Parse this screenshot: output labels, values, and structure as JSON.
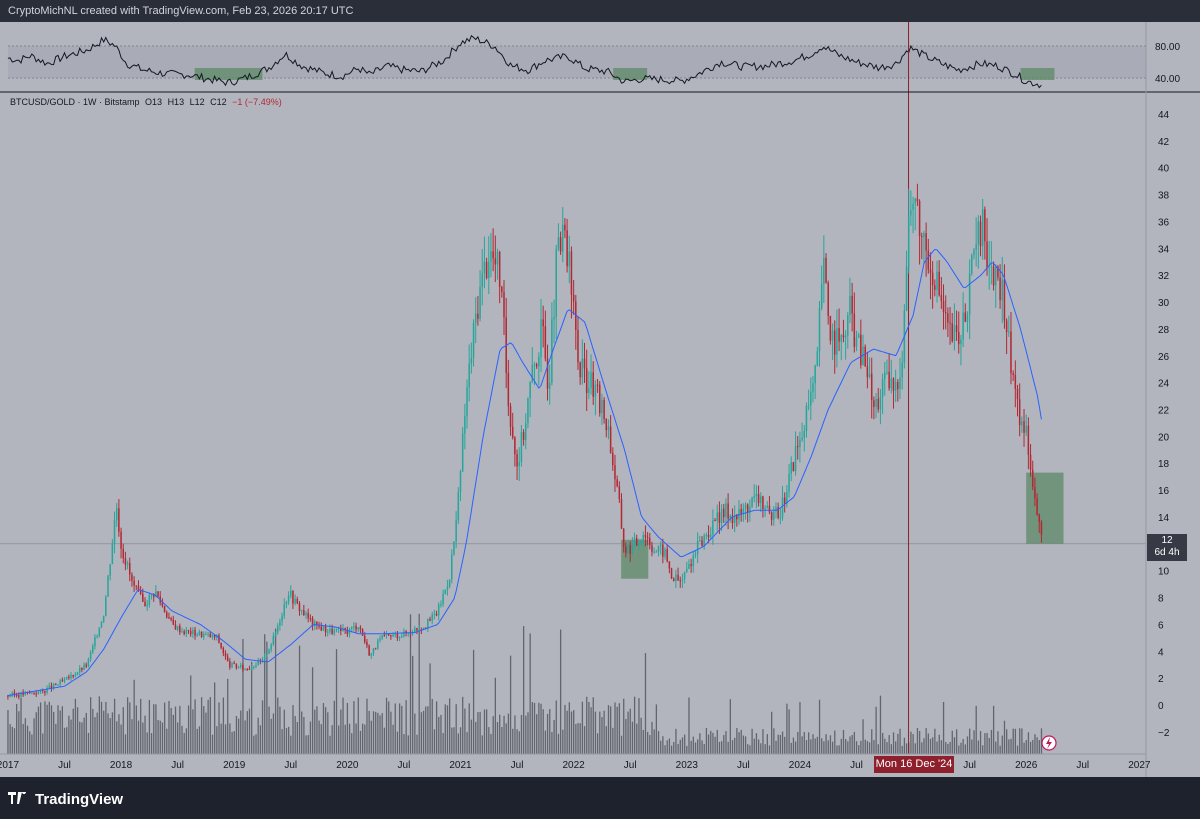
{
  "header": {
    "text": "CryptoMichNL created with TradingView.com, Feb 23, 2026 20:17 UTC"
  },
  "legend": {
    "symbol": "BTCUSD/GOLD · 1W · Bitstamp",
    "open": "O13",
    "high": "H13",
    "low": "L12",
    "close": "C12",
    "change": "−1 (−7.49%)"
  },
  "price_tag": {
    "price": "12",
    "countdown": "6d 4h"
  },
  "crosshair_date": "Mon 16 Dec '24",
  "footer": {
    "brand": "TradingView"
  },
  "colors": {
    "up": "#26a69a",
    "down": "#b22833",
    "ma": "#2962ff",
    "rsi": "#131722",
    "highlight": "#5d8a66",
    "crosshair": "#8e1f2c"
  },
  "chart_data": {
    "type": "candlestick",
    "symbol": "BTCUSD/GOLD",
    "interval": "1W",
    "exchange": "Bitstamp",
    "y_ticks": [
      -2,
      0,
      2,
      4,
      6,
      8,
      10,
      12,
      14,
      16,
      18,
      20,
      22,
      24,
      26,
      28,
      30,
      32,
      34,
      36,
      38,
      40,
      42,
      44
    ],
    "x_ticks": [
      "2017",
      "Jul",
      "2018",
      "Jul",
      "2019",
      "Jul",
      "2020",
      "Jul",
      "2021",
      "Jul",
      "2022",
      "Jul",
      "2023",
      "Jul",
      "2024",
      "Jul",
      "2025",
      "Jul",
      "2026",
      "Jul",
      "2027"
    ],
    "x_tick_years": [
      2017.0,
      2017.5,
      2018.0,
      2018.5,
      2019.0,
      2019.5,
      2020.0,
      2020.5,
      2021.0,
      2021.5,
      2022.0,
      2022.5,
      2023.0,
      2023.5,
      2024.0,
      2024.5,
      2025.0,
      2025.5,
      2026.0,
      2026.5,
      2027.0
    ],
    "x_range": [
      2016.93,
      2027.05
    ],
    "y_range": [
      -3.8,
      45.6
    ],
    "current_price": 12,
    "price_anchors": [
      [
        2017.0,
        0.7
      ],
      [
        2017.3,
        1.0
      ],
      [
        2017.5,
        1.8
      ],
      [
        2017.7,
        3.0
      ],
      [
        2017.85,
        7.0
      ],
      [
        2017.96,
        15.0
      ],
      [
        2018.0,
        12.0
      ],
      [
        2018.1,
        9.0
      ],
      [
        2018.2,
        7.5
      ],
      [
        2018.3,
        8.5
      ],
      [
        2018.45,
        6.0
      ],
      [
        2018.55,
        5.5
      ],
      [
        2018.7,
        5.3
      ],
      [
        2018.85,
        5.0
      ],
      [
        2018.95,
        3.0
      ],
      [
        2019.1,
        2.7
      ],
      [
        2019.25,
        3.3
      ],
      [
        2019.35,
        5.0
      ],
      [
        2019.48,
        8.5
      ],
      [
        2019.55,
        7.5
      ],
      [
        2019.7,
        6.0
      ],
      [
        2019.85,
        5.5
      ],
      [
        2020.0,
        5.5
      ],
      [
        2020.1,
        6.0
      ],
      [
        2020.2,
        3.7
      ],
      [
        2020.3,
        5.0
      ],
      [
        2020.5,
        5.3
      ],
      [
        2020.7,
        6.0
      ],
      [
        2020.8,
        7.0
      ],
      [
        2020.9,
        9.5
      ],
      [
        2020.97,
        14.0
      ],
      [
        2021.05,
        23.0
      ],
      [
        2021.15,
        30.0
      ],
      [
        2021.25,
        34.0
      ],
      [
        2021.35,
        32.0
      ],
      [
        2021.42,
        23.0
      ],
      [
        2021.5,
        18.0
      ],
      [
        2021.55,
        20.0
      ],
      [
        2021.62,
        24.0
      ],
      [
        2021.72,
        28.0
      ],
      [
        2021.78,
        24.0
      ],
      [
        2021.85,
        33.0
      ],
      [
        2021.92,
        35.0
      ],
      [
        2021.98,
        31.0
      ],
      [
        2022.05,
        25.0
      ],
      [
        2022.15,
        24.0
      ],
      [
        2022.2,
        23.0
      ],
      [
        2022.3,
        21.0
      ],
      [
        2022.4,
        15.0
      ],
      [
        2022.45,
        11.5
      ],
      [
        2022.55,
        12.0
      ],
      [
        2022.62,
        13.0
      ],
      [
        2022.72,
        11.5
      ],
      [
        2022.8,
        11.5
      ],
      [
        2022.87,
        9.5
      ],
      [
        2022.95,
        9.2
      ],
      [
        2023.05,
        11.0
      ],
      [
        2023.15,
        12.5
      ],
      [
        2023.25,
        13.5
      ],
      [
        2023.35,
        14.5
      ],
      [
        2023.45,
        14.0
      ],
      [
        2023.55,
        15.0
      ],
      [
        2023.65,
        15.5
      ],
      [
        2023.75,
        13.5
      ],
      [
        2023.85,
        15.0
      ],
      [
        2023.95,
        18.5
      ],
      [
        2024.05,
        21.0
      ],
      [
        2024.15,
        25.0
      ],
      [
        2024.2,
        33.0
      ],
      [
        2024.27,
        28.0
      ],
      [
        2024.35,
        26.5
      ],
      [
        2024.45,
        29.5
      ],
      [
        2024.5,
        27.0
      ],
      [
        2024.6,
        25.0
      ],
      [
        2024.65,
        22.0
      ],
      [
        2024.75,
        24.0
      ],
      [
        2024.85,
        23.5
      ],
      [
        2024.9,
        26.0
      ],
      [
        2024.96,
        36.0
      ],
      [
        2025.0,
        38.0
      ],
      [
        2025.05,
        36.0
      ],
      [
        2025.12,
        34.0
      ],
      [
        2025.2,
        32.0
      ],
      [
        2025.3,
        28.0
      ],
      [
        2025.4,
        27.0
      ],
      [
        2025.5,
        31.0
      ],
      [
        2025.55,
        34.0
      ],
      [
        2025.62,
        35.5
      ],
      [
        2025.7,
        32.0
      ],
      [
        2025.8,
        30.0
      ],
      [
        2025.9,
        23.5
      ],
      [
        2025.95,
        21.0
      ],
      [
        2026.0,
        20.5
      ],
      [
        2026.05,
        17.5
      ],
      [
        2026.1,
        14.0
      ],
      [
        2026.15,
        12.0
      ]
    ],
    "ma_anchors": [
      [
        2017.0,
        0.7
      ],
      [
        2017.5,
        1.4
      ],
      [
        2017.7,
        2.5
      ],
      [
        2017.85,
        4.2
      ],
      [
        2018.0,
        6.5
      ],
      [
        2018.15,
        8.6
      ],
      [
        2018.3,
        8.2
      ],
      [
        2018.45,
        7.0
      ],
      [
        2018.7,
        6.0
      ],
      [
        2018.9,
        4.8
      ],
      [
        2019.1,
        3.4
      ],
      [
        2019.3,
        3.2
      ],
      [
        2019.5,
        4.5
      ],
      [
        2019.7,
        6.0
      ],
      [
        2019.9,
        5.8
      ],
      [
        2020.1,
        5.3
      ],
      [
        2020.3,
        5.3
      ],
      [
        2020.6,
        5.4
      ],
      [
        2020.8,
        6.0
      ],
      [
        2020.95,
        8.0
      ],
      [
        2021.05,
        12.0
      ],
      [
        2021.2,
        20.0
      ],
      [
        2021.35,
        26.5
      ],
      [
        2021.45,
        27.0
      ],
      [
        2021.55,
        25.5
      ],
      [
        2021.7,
        23.5
      ],
      [
        2021.8,
        26.0
      ],
      [
        2021.95,
        29.5
      ],
      [
        2022.1,
        28.5
      ],
      [
        2022.3,
        23.0
      ],
      [
        2022.45,
        19.0
      ],
      [
        2022.6,
        14.0
      ],
      [
        2022.75,
        12.5
      ],
      [
        2022.95,
        11.0
      ],
      [
        2023.15,
        11.8
      ],
      [
        2023.4,
        14.0
      ],
      [
        2023.6,
        14.5
      ],
      [
        2023.8,
        14.5
      ],
      [
        2023.95,
        15.5
      ],
      [
        2024.1,
        18.5
      ],
      [
        2024.25,
        22.0
      ],
      [
        2024.45,
        25.5
      ],
      [
        2024.65,
        26.5
      ],
      [
        2024.85,
        26.0
      ],
      [
        2025.0,
        29.0
      ],
      [
        2025.1,
        33.0
      ],
      [
        2025.2,
        34.0
      ],
      [
        2025.3,
        33.0
      ],
      [
        2025.45,
        31.0
      ],
      [
        2025.6,
        32.0
      ],
      [
        2025.7,
        33.0
      ],
      [
        2025.8,
        32.0
      ],
      [
        2025.95,
        28.0
      ],
      [
        2026.1,
        23.0
      ],
      [
        2026.15,
        20.5
      ]
    ],
    "rsi": {
      "levels": [
        "80.00",
        "40.00"
      ],
      "anchors": [
        [
          2017.0,
          65
        ],
        [
          2017.1,
          62
        ],
        [
          2017.2,
          68
        ],
        [
          2017.35,
          58
        ],
        [
          2017.5,
          67
        ],
        [
          2017.7,
          75
        ],
        [
          2017.85,
          88
        ],
        [
          2017.95,
          80
        ],
        [
          2018.05,
          58
        ],
        [
          2018.2,
          50
        ],
        [
          2018.4,
          45
        ],
        [
          2018.6,
          44
        ],
        [
          2018.8,
          38
        ],
        [
          2018.95,
          34
        ],
        [
          2019.1,
          40
        ],
        [
          2019.3,
          52
        ],
        [
          2019.45,
          70
        ],
        [
          2019.6,
          55
        ],
        [
          2019.8,
          46
        ],
        [
          2019.95,
          42
        ],
        [
          2020.1,
          52
        ],
        [
          2020.2,
          44
        ],
        [
          2020.35,
          55
        ],
        [
          2020.5,
          50
        ],
        [
          2020.65,
          48
        ],
        [
          2020.85,
          62
        ],
        [
          2021.0,
          84
        ],
        [
          2021.12,
          90
        ],
        [
          2021.3,
          80
        ],
        [
          2021.45,
          55
        ],
        [
          2021.6,
          50
        ],
        [
          2021.75,
          62
        ],
        [
          2021.95,
          67
        ],
        [
          2022.1,
          52
        ],
        [
          2022.3,
          48
        ],
        [
          2022.45,
          35
        ],
        [
          2022.6,
          39
        ],
        [
          2022.8,
          38
        ],
        [
          2022.95,
          36
        ],
        [
          2023.1,
          45
        ],
        [
          2023.3,
          60
        ],
        [
          2023.5,
          54
        ],
        [
          2023.7,
          55
        ],
        [
          2023.95,
          62
        ],
        [
          2024.1,
          70
        ],
        [
          2024.2,
          80
        ],
        [
          2024.35,
          68
        ],
        [
          2024.5,
          60
        ],
        [
          2024.7,
          53
        ],
        [
          2024.85,
          58
        ],
        [
          2024.97,
          78
        ],
        [
          2025.1,
          68
        ],
        [
          2025.25,
          58
        ],
        [
          2025.4,
          50
        ],
        [
          2025.6,
          58
        ],
        [
          2025.75,
          55
        ],
        [
          2025.9,
          45
        ],
        [
          2026.0,
          36
        ],
        [
          2026.12,
          32
        ],
        [
          2026.15,
          30
        ]
      ],
      "highlight_years": [
        [
          2018.65,
          2019.25
        ],
        [
          2022.35,
          2022.65
        ],
        [
          2025.95,
          2026.25
        ]
      ]
    },
    "highlight_boxes": [
      {
        "x_from": 2022.42,
        "x_to": 2022.66,
        "y_from": 9.4,
        "y_to": 12.3
      },
      {
        "x_from": 2026.0,
        "x_to": 2026.33,
        "y_from": 12.0,
        "y_to": 17.3
      }
    ],
    "crosshair_x": 2024.96
  }
}
